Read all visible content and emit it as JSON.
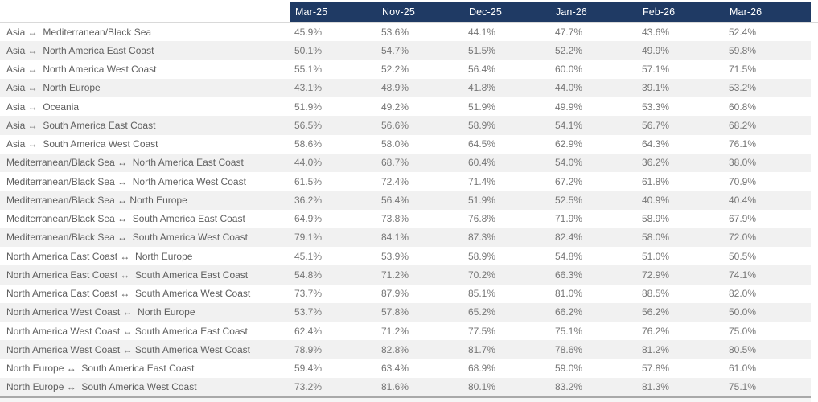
{
  "colors": {
    "header_bg": "#1f3a64",
    "header_text": "#ffffff",
    "row_alt_bg": "#f1f1f1",
    "label_text": "#5f5f5f",
    "value_text": "#767676",
    "bottom_border": "#a9a9a9"
  },
  "chart_data": {
    "type": "table",
    "columns": [
      "Mar-25",
      "Nov-25",
      "Dec-25",
      "Jan-26",
      "Feb-26",
      "Mar-26"
    ],
    "rows": [
      {
        "label": "Asia ↔  Mediterranean/Black Sea",
        "values": [
          "45.9%",
          "53.6%",
          "44.1%",
          "47.7%",
          "43.6%",
          "52.4%"
        ]
      },
      {
        "label": "Asia ↔  North America East Coast",
        "values": [
          "50.1%",
          "54.7%",
          "51.5%",
          "52.2%",
          "49.9%",
          "59.8%"
        ]
      },
      {
        "label": "Asia ↔  North America West Coast",
        "values": [
          "55.1%",
          "52.2%",
          "56.4%",
          "60.0%",
          "57.1%",
          "71.5%"
        ]
      },
      {
        "label": "Asia ↔  North Europe",
        "values": [
          "43.1%",
          "48.9%",
          "41.8%",
          "44.0%",
          "39.1%",
          "53.2%"
        ]
      },
      {
        "label": "Asia ↔  Oceania",
        "values": [
          "51.9%",
          "49.2%",
          "51.9%",
          "49.9%",
          "53.3%",
          "60.8%"
        ]
      },
      {
        "label": "Asia ↔  South America East Coast",
        "values": [
          "56.5%",
          "56.6%",
          "58.9%",
          "54.1%",
          "56.7%",
          "68.2%"
        ]
      },
      {
        "label": "Asia ↔  South America West Coast",
        "values": [
          "58.6%",
          "58.0%",
          "64.5%",
          "62.9%",
          "64.3%",
          "76.1%"
        ]
      },
      {
        "label": "Mediterranean/Black Sea ↔  North America East Coast",
        "values": [
          "44.0%",
          "68.7%",
          "60.4%",
          "54.0%",
          "36.2%",
          "38.0%"
        ]
      },
      {
        "label": "Mediterranean/Black Sea ↔  North America West Coast",
        "values": [
          "61.5%",
          "72.4%",
          "71.4%",
          "67.2%",
          "61.8%",
          "70.9%"
        ]
      },
      {
        "label": "Mediterranean/Black Sea ↔ North Europe",
        "values": [
          "36.2%",
          "56.4%",
          "51.9%",
          "52.5%",
          "40.9%",
          "40.4%"
        ]
      },
      {
        "label": "Mediterranean/Black Sea ↔  South America East Coast",
        "values": [
          "64.9%",
          "73.8%",
          "76.8%",
          "71.9%",
          "58.9%",
          "67.9%"
        ]
      },
      {
        "label": "Mediterranean/Black Sea ↔  South America West Coast",
        "values": [
          "79.1%",
          "84.1%",
          "87.3%",
          "82.4%",
          "58.0%",
          "72.0%"
        ]
      },
      {
        "label": "North America East Coast ↔  North Europe",
        "values": [
          "45.1%",
          "53.9%",
          "58.9%",
          "54.8%",
          "51.0%",
          "50.5%"
        ]
      },
      {
        "label": "North America East Coast ↔  South America East Coast",
        "values": [
          "54.8%",
          "71.2%",
          "70.2%",
          "66.3%",
          "72.9%",
          "74.1%"
        ]
      },
      {
        "label": "North America East Coast ↔  South America West Coast",
        "values": [
          "73.7%",
          "87.9%",
          "85.1%",
          "81.0%",
          "88.5%",
          "82.0%"
        ]
      },
      {
        "label": "North America West Coast ↔  North Europe",
        "values": [
          "53.7%",
          "57.8%",
          "65.2%",
          "66.2%",
          "56.2%",
          "50.0%"
        ]
      },
      {
        "label": "North America West Coast ↔ South America East Coast",
        "values": [
          "62.4%",
          "71.2%",
          "77.5%",
          "75.1%",
          "76.2%",
          "75.0%"
        ]
      },
      {
        "label": "North America West Coast ↔ South America West Coast",
        "values": [
          "78.9%",
          "82.8%",
          "81.7%",
          "78.6%",
          "81.2%",
          "80.5%"
        ]
      },
      {
        "label": "North Europe ↔  South America East Coast",
        "values": [
          "59.4%",
          "63.4%",
          "68.9%",
          "59.0%",
          "57.8%",
          "61.0%"
        ]
      },
      {
        "label": "North Europe ↔  South America West Coast",
        "values": [
          "73.2%",
          "81.6%",
          "80.1%",
          "83.2%",
          "81.3%",
          "75.1%"
        ]
      }
    ]
  }
}
